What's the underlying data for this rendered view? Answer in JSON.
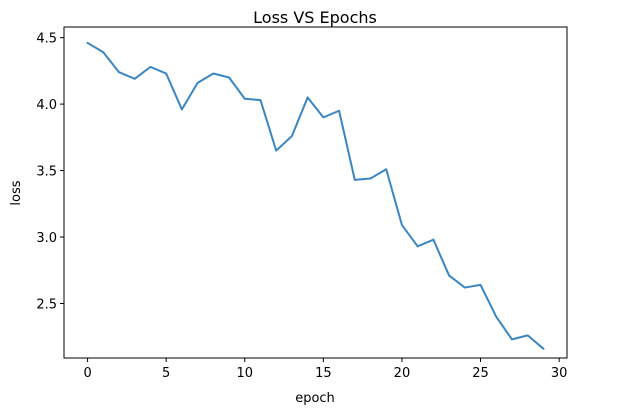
{
  "chart_data": {
    "type": "line",
    "title": "Loss VS Epochs",
    "xlabel": "epoch",
    "ylabel": "loss",
    "xlim": [
      -1.5,
      30.5
    ],
    "ylim": [
      2.09,
      4.58
    ],
    "xticks": [
      0,
      5,
      10,
      15,
      20,
      25,
      30
    ],
    "yticks": [
      2.5,
      3.0,
      3.5,
      4.0,
      4.5
    ],
    "xtick_labels": [
      "0",
      "5",
      "10",
      "15",
      "20",
      "25",
      "30"
    ],
    "ytick_labels": [
      "2.5",
      "3.0",
      "3.5",
      "4.0",
      "4.5"
    ],
    "grid": false,
    "series": [
      {
        "color": "#3a86c3",
        "x": [
          0,
          1,
          2,
          3,
          4,
          5,
          6,
          7,
          8,
          9,
          10,
          11,
          12,
          13,
          14,
          15,
          16,
          17,
          18,
          19,
          20,
          21,
          22,
          23,
          24,
          25,
          26,
          27,
          28,
          29
        ],
        "y": [
          4.46,
          4.39,
          4.24,
          4.19,
          4.28,
          4.23,
          3.96,
          4.16,
          4.23,
          4.2,
          4.04,
          4.03,
          3.65,
          3.76,
          4.05,
          3.9,
          3.95,
          3.43,
          3.44,
          3.51,
          3.09,
          2.93,
          2.98,
          2.71,
          2.62,
          2.64,
          2.4,
          2.23,
          2.26,
          2.16
        ]
      }
    ]
  }
}
